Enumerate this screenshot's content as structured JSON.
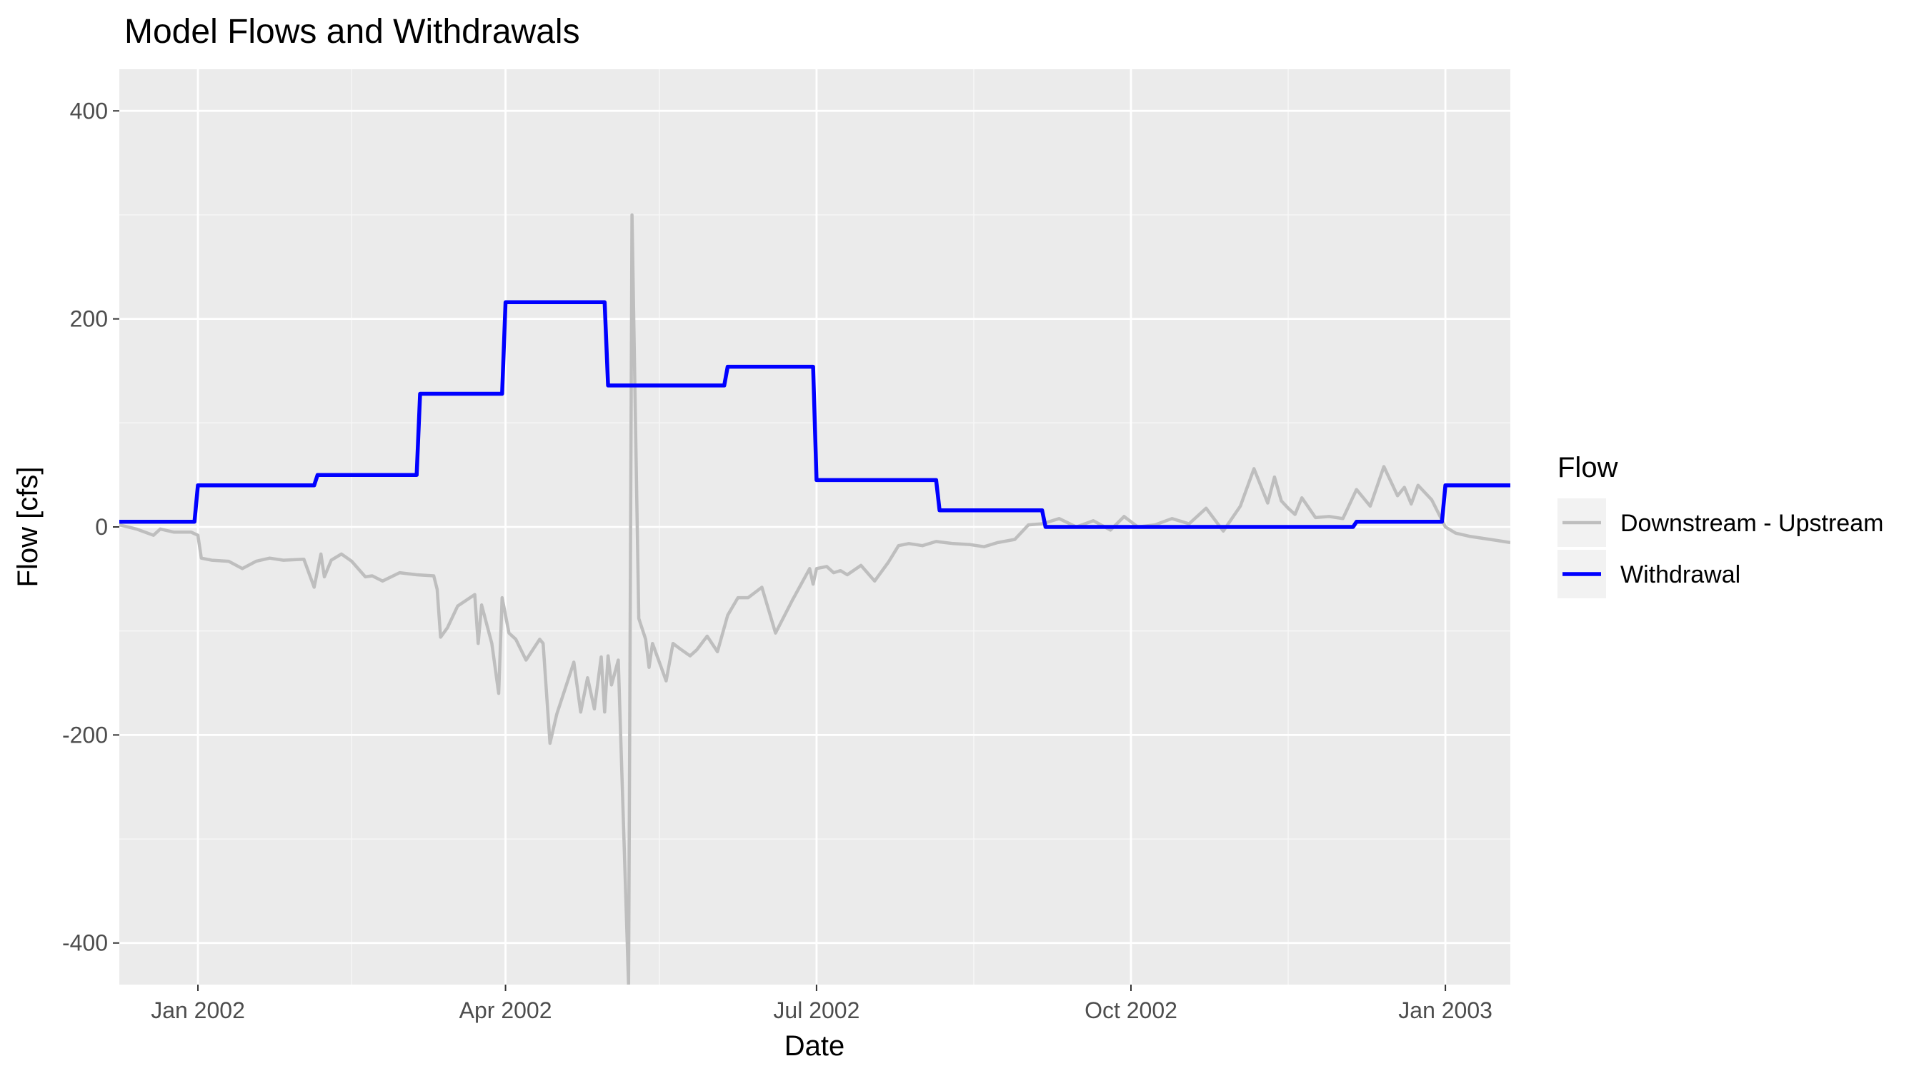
{
  "chart_data": {
    "type": "line",
    "title": "Model Flows and Withdrawals",
    "xlabel": "Date",
    "ylabel": "Flow [cfs]",
    "xlim": [
      "2001-12-09",
      "2003-01-20"
    ],
    "ylim": [
      -440,
      440
    ],
    "x_ticks": [
      {
        "date": "2002-01-01",
        "label": "Jan 2002"
      },
      {
        "date": "2002-04-01",
        "label": "Apr 2002"
      },
      {
        "date": "2002-07-01",
        "label": "Jul 2002"
      },
      {
        "date": "2002-10-01",
        "label": "Oct 2002"
      },
      {
        "date": "2003-01-01",
        "label": "Jan 2003"
      }
    ],
    "x_minor_gridlines": [
      "2002-02-15",
      "2002-05-16",
      "2002-08-16",
      "2002-11-16"
    ],
    "y_ticks": [
      {
        "value": -400,
        "label": "-400"
      },
      {
        "value": -200,
        "label": "-200"
      },
      {
        "value": 0,
        "label": "0"
      },
      {
        "value": 200,
        "label": "200"
      },
      {
        "value": 400,
        "label": "400"
      }
    ],
    "grid": true,
    "legend": {
      "title": "Flow",
      "position": "right"
    },
    "series": [
      {
        "name": "Downstream - Upstream",
        "color": "#bebebe",
        "x": [
          "2001-12-09",
          "2001-12-14",
          "2001-12-19",
          "2001-12-21",
          "2001-12-25",
          "2001-12-30",
          "2002-01-01",
          "2002-01-02",
          "2002-01-05",
          "2002-01-10",
          "2002-01-14",
          "2002-01-18",
          "2002-01-22",
          "2002-01-26",
          "2002-02-01",
          "2002-02-04",
          "2002-02-06",
          "2002-02-07",
          "2002-02-09",
          "2002-02-12",
          "2002-02-15",
          "2002-02-19",
          "2002-02-21",
          "2002-02-24",
          "2002-03-01",
          "2002-03-06",
          "2002-03-11",
          "2002-03-12",
          "2002-03-13",
          "2002-03-15",
          "2002-03-18",
          "2002-03-23",
          "2002-03-24",
          "2002-03-25",
          "2002-03-28",
          "2002-03-30",
          "2002-03-31",
          "2002-04-02",
          "2002-04-04",
          "2002-04-07",
          "2002-04-11",
          "2002-04-12",
          "2002-04-14",
          "2002-04-16",
          "2002-04-19",
          "2002-04-21",
          "2002-04-23",
          "2002-04-25",
          "2002-04-27",
          "2002-04-29",
          "2002-04-30",
          "2002-05-01",
          "2002-05-02",
          "2002-05-04",
          "2002-05-07",
          "2002-05-08",
          "2002-05-10",
          "2002-05-12",
          "2002-05-13",
          "2002-05-14",
          "2002-05-18",
          "2002-05-20",
          "2002-05-22",
          "2002-05-25",
          "2002-05-27",
          "2002-05-30",
          "2002-06-02",
          "2002-06-05",
          "2002-06-08",
          "2002-06-11",
          "2002-06-15",
          "2002-06-19",
          "2002-06-24",
          "2002-06-29",
          "2002-06-30",
          "2002-07-01",
          "2002-07-04",
          "2002-07-06",
          "2002-07-08",
          "2002-07-10",
          "2002-07-14",
          "2002-07-18",
          "2002-07-22",
          "2002-07-25",
          "2002-07-28",
          "2002-08-01",
          "2002-08-05",
          "2002-08-10",
          "2002-08-15",
          "2002-08-19",
          "2002-08-23",
          "2002-08-28",
          "2002-09-01",
          "2002-09-05",
          "2002-09-10",
          "2002-09-15",
          "2002-09-20",
          "2002-09-25",
          "2002-09-29",
          "2002-10-03",
          "2002-10-08",
          "2002-10-13",
          "2002-10-18",
          "2002-10-23",
          "2002-10-28",
          "2002-11-02",
          "2002-11-06",
          "2002-11-10",
          "2002-11-12",
          "2002-11-14",
          "2002-11-16",
          "2002-11-18",
          "2002-11-20",
          "2002-11-24",
          "2002-11-28",
          "2002-12-02",
          "2002-12-06",
          "2002-12-10",
          "2002-12-14",
          "2002-12-18",
          "2002-12-20",
          "2002-12-22",
          "2002-12-24",
          "2002-12-28",
          "2003-01-01",
          "2003-01-04",
          "2003-01-08",
          "2003-01-12",
          "2003-01-16",
          "2003-01-20"
        ],
        "values": [
          2,
          -2,
          -8,
          -2,
          -5,
          -5,
          -8,
          -30,
          -32,
          -33,
          -40,
          -33,
          -30,
          -32,
          -31,
          -58,
          -26,
          -48,
          -32,
          -26,
          -33,
          -48,
          -47,
          -52,
          -44,
          -46,
          -47,
          -60,
          -106,
          -97,
          -76,
          -65,
          -112,
          -75,
          -112,
          -160,
          -68,
          -102,
          -108,
          -128,
          -108,
          -112,
          -208,
          -180,
          -150,
          -130,
          -178,
          -145,
          -175,
          -125,
          -178,
          -124,
          -152,
          -128,
          -440,
          300,
          -88,
          -108,
          -135,
          -112,
          -148,
          -112,
          -117,
          -124,
          -118,
          -105,
          -120,
          -85,
          -68,
          -68,
          -58,
          -102,
          -70,
          -40,
          -55,
          -40,
          -38,
          -44,
          -42,
          -46,
          -37,
          -52,
          -34,
          -18,
          -16,
          -18,
          -14,
          -16,
          -17,
          -19,
          -15,
          -12,
          2,
          3,
          8,
          0,
          6,
          -3,
          10,
          0,
          2,
          8,
          3,
          18,
          -4,
          20,
          56,
          23,
          48,
          25,
          18,
          12,
          28,
          9,
          10,
          8,
          36,
          20,
          58,
          30,
          38,
          22,
          40,
          26,
          0,
          -6,
          -9,
          -11,
          -13,
          -15
        ]
      },
      {
        "name": "Withdrawal",
        "color": "#0000ff",
        "x": [
          "2001-12-09",
          "2001-12-31",
          "2002-01-01",
          "2002-02-04",
          "2002-02-05",
          "2002-03-06",
          "2002-03-07",
          "2002-03-31",
          "2002-04-01",
          "2002-04-30",
          "2002-05-01",
          "2002-06-04",
          "2002-06-05",
          "2002-06-30",
          "2002-07-01",
          "2002-08-05",
          "2002-08-06",
          "2002-09-05",
          "2002-09-06",
          "2002-12-05",
          "2002-12-06",
          "2002-12-31",
          "2003-01-01",
          "2003-01-20"
        ],
        "values": [
          5,
          5,
          40,
          40,
          50,
          50,
          128,
          128,
          216,
          216,
          136,
          136,
          154,
          154,
          45,
          45,
          16,
          16,
          0,
          0,
          5,
          5,
          40,
          40
        ]
      }
    ]
  }
}
